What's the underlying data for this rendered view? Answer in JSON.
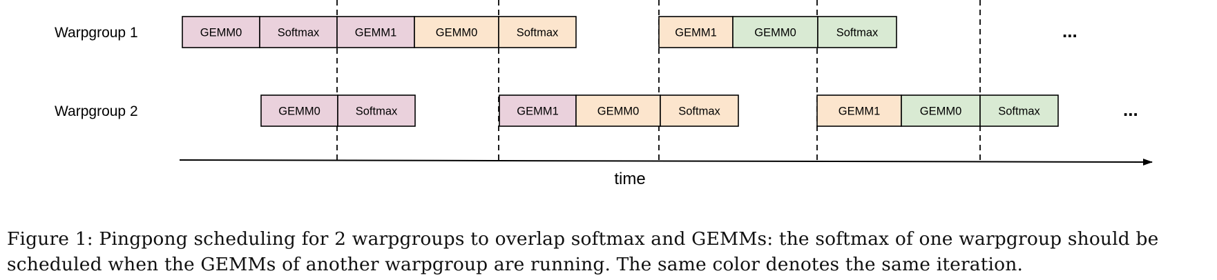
{
  "lanes": [
    {
      "label": "Warpgroup 1",
      "blocks": [
        {
          "text": "GEMM0",
          "color": "pink"
        },
        {
          "text": "Softmax",
          "color": "pink"
        },
        {
          "text": "GEMM1",
          "color": "pink"
        },
        {
          "text": "GEMM0",
          "color": "peach"
        },
        {
          "text": "Softmax",
          "color": "peach"
        },
        {
          "text": "GEMM1",
          "color": "peach"
        },
        {
          "text": "GEMM0",
          "color": "green"
        },
        {
          "text": "Softmax",
          "color": "green"
        }
      ],
      "ellipsis": "..."
    },
    {
      "label": "Warpgroup 2",
      "blocks": [
        {
          "text": "GEMM0",
          "color": "pink"
        },
        {
          "text": "Softmax",
          "color": "pink"
        },
        {
          "text": "GEMM1",
          "color": "pink"
        },
        {
          "text": "GEMM0",
          "color": "peach"
        },
        {
          "text": "Softmax",
          "color": "peach"
        },
        {
          "text": "GEMM1",
          "color": "peach"
        },
        {
          "text": "GEMM0",
          "color": "green"
        },
        {
          "text": "Softmax",
          "color": "green"
        }
      ],
      "ellipsis": "..."
    }
  ],
  "axis": {
    "label": "time"
  },
  "colors": {
    "pink": "#ead1dc",
    "peach": "#fce5cd",
    "green": "#d9ead3",
    "border": "#000000",
    "divider": "#000000"
  },
  "caption": {
    "line1": "Figure 1: Pingpong scheduling for 2 warpgroups to overlap softmax and GEMMs: the softmax of one warpgroup should be",
    "line2": "scheduled when the GEMMs of another warpgroup are running. The same color denotes the same iteration."
  }
}
